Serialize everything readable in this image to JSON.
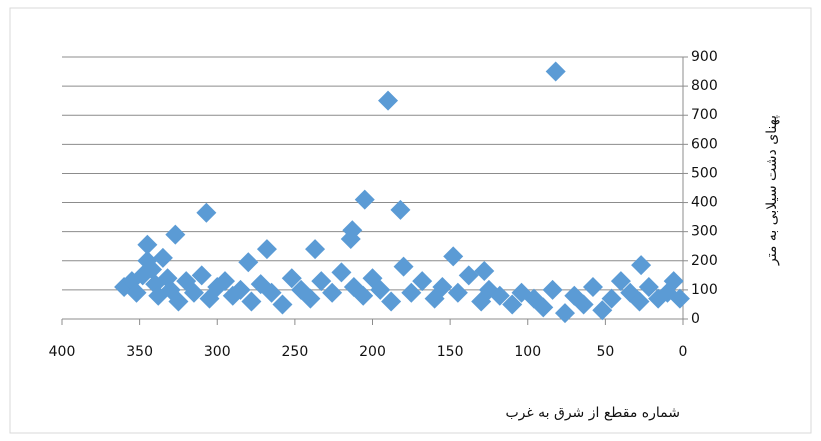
{
  "chart_data": {
    "type": "scatter",
    "x_label": "شماره مقطع از شرق به غرب",
    "y_label": "پهنای دشت سیلابی به متر",
    "color": "#5b9bd5",
    "x": [
      82,
      190,
      205,
      182,
      307,
      213,
      327,
      345,
      268,
      237,
      214,
      148,
      27,
      280,
      128,
      360,
      355,
      352,
      348,
      345,
      342,
      340,
      338,
      335,
      332,
      330,
      325,
      320,
      315,
      310,
      305,
      300,
      295,
      290,
      285,
      278,
      272,
      265,
      258,
      252,
      246,
      240,
      233,
      226,
      220,
      212,
      206,
      200,
      195,
      188,
      180,
      175,
      168,
      160,
      155,
      145,
      138,
      130,
      125,
      118,
      110,
      104,
      96,
      90,
      84,
      76,
      70,
      64,
      58,
      52,
      46,
      40,
      34,
      28,
      22,
      16,
      10,
      6,
      2
    ],
    "values": [
      850,
      750,
      410,
      375,
      365,
      305,
      290,
      255,
      240,
      240,
      275,
      215,
      185,
      195,
      165,
      110,
      130,
      90,
      150,
      200,
      170,
      120,
      80,
      210,
      140,
      100,
      60,
      130,
      90,
      150,
      70,
      110,
      130,
      80,
      100,
      60,
      120,
      90,
      50,
      140,
      100,
      70,
      130,
      90,
      160,
      110,
      80,
      140,
      100,
      60,
      180,
      90,
      130,
      70,
      110,
      90,
      150,
      60,
      100,
      80,
      50,
      90,
      70,
      40,
      100,
      20,
      80,
      50,
      110,
      30,
      70,
      130,
      90,
      60,
      110,
      70,
      90,
      130,
      70
    ],
    "xlim": [
      400,
      0
    ],
    "xticks": [
      400,
      350,
      300,
      250,
      200,
      150,
      100,
      50,
      0
    ],
    "ylim": [
      0,
      900
    ],
    "yticks": [
      0,
      100,
      200,
      300,
      400,
      500,
      600,
      700,
      800,
      900
    ],
    "grid": true
  }
}
